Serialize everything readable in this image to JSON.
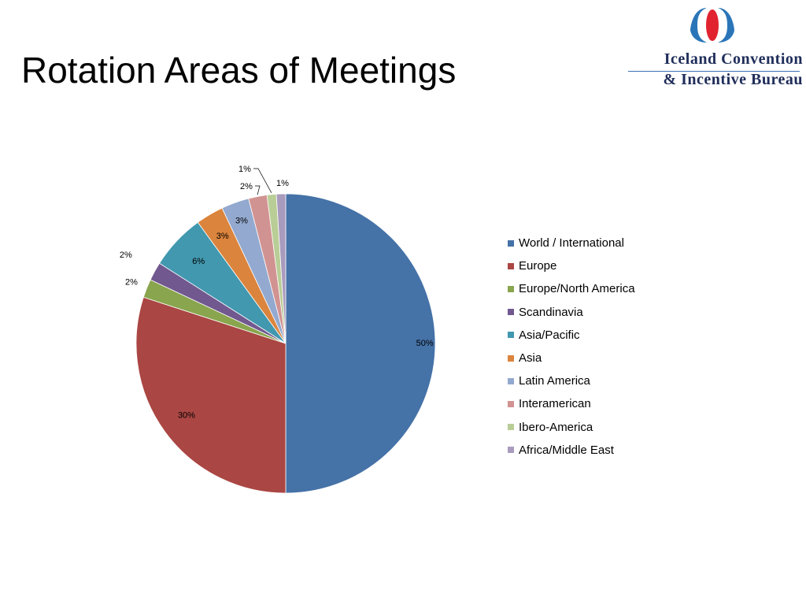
{
  "slide": {
    "title": "Rotation Areas of Meetings"
  },
  "logo": {
    "line1": "Iceland Convention",
    "line2": "& Incentive Bureau",
    "colors": {
      "blue": "#2a75b8",
      "red": "#e1232f",
      "navy": "#1f2d5a"
    }
  },
  "chart_data": {
    "type": "pie",
    "title": "",
    "legend_position": "right",
    "slices": [
      {
        "name": "World / International",
        "value": 50,
        "label": "50%",
        "color": "#4572a7"
      },
      {
        "name": "Europe",
        "value": 30,
        "label": "30%",
        "color": "#aa4643"
      },
      {
        "name": "Europe/North America",
        "value": 2,
        "label": "2%",
        "color": "#89a54e"
      },
      {
        "name": "Scandinavia",
        "value": 2,
        "label": "2%",
        "color": "#71588f"
      },
      {
        "name": "Asia/Pacific",
        "value": 6,
        "label": "6%",
        "color": "#4198af"
      },
      {
        "name": "Asia",
        "value": 3,
        "label": "3%",
        "color": "#db843d"
      },
      {
        "name": "Latin America",
        "value": 3,
        "label": "3%",
        "color": "#93a9cf"
      },
      {
        "name": "Interamerican",
        "value": 2,
        "label": "2%",
        "color": "#d19392"
      },
      {
        "name": "Ibero-America",
        "value": 1,
        "label": "1%",
        "color": "#b9cd96"
      },
      {
        "name": "Africa/Middle East",
        "value": 1,
        "label": "1%",
        "color": "#a99bbd"
      }
    ]
  }
}
